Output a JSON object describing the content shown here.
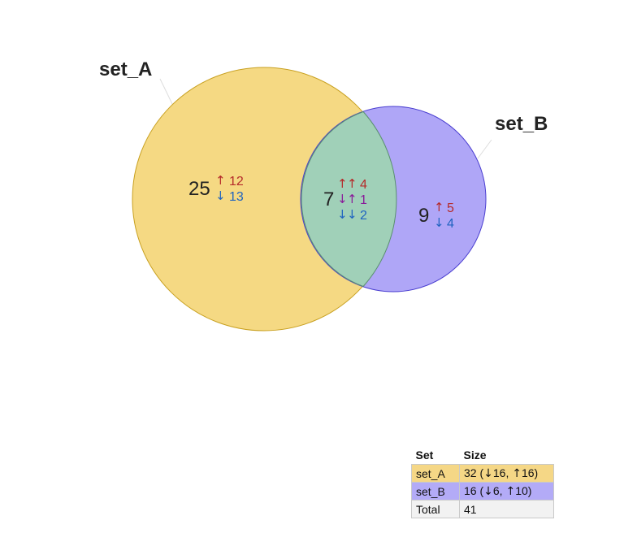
{
  "colors": {
    "set_A_fill": "#f2cc5a",
    "set_A_stroke": "#c8a020",
    "set_B_fill": "#8d80f4",
    "set_B_stroke": "#4a3ed0",
    "overlap_fill": "#a0d0b8",
    "up": "#b52a2a",
    "down": "#1f63c0",
    "mixed": "#8a1a9a"
  },
  "sets": [
    {
      "label": "set_A"
    },
    {
      "label": "set_B"
    }
  ],
  "regions": {
    "only_A": {
      "count": "25",
      "up": "12",
      "down": "13"
    },
    "both": {
      "count": "7",
      "up_up": "4",
      "down_up": "1",
      "down_down": "2"
    },
    "only_B": {
      "count": "9",
      "up": "5",
      "down": "4"
    }
  },
  "table": {
    "headers": [
      "Set",
      "Size"
    ],
    "rows": [
      {
        "set": "set_A",
        "size": "32",
        "down": "16",
        "up": "16"
      },
      {
        "set": "set_B",
        "size": "16",
        "down": "6",
        "up": "10"
      }
    ],
    "total": {
      "label": "Total",
      "value": "41"
    }
  },
  "icons": {
    "up": "arrow-up-icon",
    "down": "arrow-down-icon"
  }
}
